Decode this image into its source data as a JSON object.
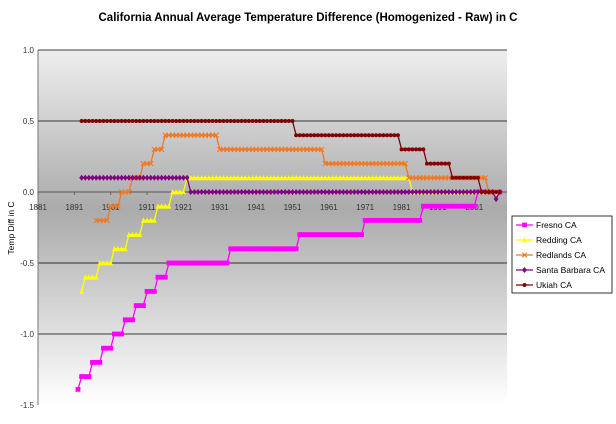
{
  "chart_data": {
    "type": "line",
    "title": "California Annual Average Temperature Difference (Homogenized - Raw) in C",
    "xlabel": "",
    "ylabel": "Temp Diff in C",
    "xlim": [
      1881,
      2010
    ],
    "ylim": [
      -1.5,
      1.0
    ],
    "x_ticks": [
      "1881",
      "1891",
      "1901",
      "1911",
      "1921",
      "1931",
      "1941",
      "1951",
      "1961",
      "1971",
      "1981",
      "1991",
      "2001"
    ],
    "y_ticks": [
      "1.0",
      "0.5",
      "0.0",
      "-0.5",
      "-1.0",
      "-1.5"
    ],
    "grid": "horizontal",
    "legend_position": "right",
    "series": [
      {
        "name": "Fresno CA",
        "color": "#ff00ff",
        "marker": "square",
        "points": [
          [
            1892,
            -1.39
          ],
          [
            1893,
            -1.3
          ],
          [
            1895,
            -1.3
          ],
          [
            1896,
            -1.2
          ],
          [
            1898,
            -1.2
          ],
          [
            1899,
            -1.1
          ],
          [
            1901,
            -1.1
          ],
          [
            1902,
            -1.0
          ],
          [
            1904,
            -1.0
          ],
          [
            1905,
            -0.9
          ],
          [
            1907,
            -0.9
          ],
          [
            1908,
            -0.8
          ],
          [
            1910,
            -0.8
          ],
          [
            1911,
            -0.7
          ],
          [
            1913,
            -0.7
          ],
          [
            1914,
            -0.6
          ],
          [
            1916,
            -0.6
          ],
          [
            1917,
            -0.5
          ],
          [
            1933,
            -0.5
          ],
          [
            1934,
            -0.4
          ],
          [
            1952,
            -0.4
          ],
          [
            1953,
            -0.3
          ],
          [
            1970,
            -0.3
          ],
          [
            1971,
            -0.2
          ],
          [
            1986,
            -0.2
          ],
          [
            1987,
            -0.1
          ],
          [
            2001,
            -0.1
          ],
          [
            2002,
            0.0
          ],
          [
            2008,
            0.0
          ]
        ]
      },
      {
        "name": "Redding CA",
        "color": "#ffff00",
        "marker": "triangle",
        "points": [
          [
            1893,
            -0.7
          ],
          [
            1894,
            -0.6
          ],
          [
            1897,
            -0.6
          ],
          [
            1898,
            -0.5
          ],
          [
            1901,
            -0.5
          ],
          [
            1902,
            -0.4
          ],
          [
            1905,
            -0.4
          ],
          [
            1906,
            -0.3
          ],
          [
            1909,
            -0.3
          ],
          [
            1910,
            -0.2
          ],
          [
            1913,
            -0.2
          ],
          [
            1914,
            -0.1
          ],
          [
            1917,
            -0.1
          ],
          [
            1918,
            0.0
          ],
          [
            1921,
            0.0
          ],
          [
            1922,
            0.1
          ],
          [
            1983,
            0.1
          ],
          [
            1984,
            0.0
          ],
          [
            2007,
            0.0
          ]
        ]
      },
      {
        "name": "Redlands CA",
        "color": "#f07820",
        "marker": "x",
        "points": [
          [
            1897,
            -0.2
          ],
          [
            1900,
            -0.2
          ],
          [
            1901,
            -0.1
          ],
          [
            1903,
            -0.1
          ],
          [
            1904,
            0.0
          ],
          [
            1906,
            0.0
          ],
          [
            1907,
            0.1
          ],
          [
            1909,
            0.1
          ],
          [
            1910,
            0.2
          ],
          [
            1912,
            0.2
          ],
          [
            1913,
            0.3
          ],
          [
            1915,
            0.3
          ],
          [
            1916,
            0.4
          ],
          [
            1930,
            0.4
          ],
          [
            1931,
            0.3
          ],
          [
            1959,
            0.3
          ],
          [
            1960,
            0.2
          ],
          [
            1982,
            0.2
          ],
          [
            1983,
            0.1
          ],
          [
            2004,
            0.1
          ],
          [
            2005,
            0.0
          ],
          [
            2007,
            0.0
          ]
        ]
      },
      {
        "name": "Santa Barbara CA",
        "color": "#800080",
        "marker": "diamond",
        "points": [
          [
            1893,
            0.1
          ],
          [
            1922,
            0.1
          ],
          [
            1923,
            0.0
          ],
          [
            2006,
            0.0
          ],
          [
            2007,
            -0.05
          ],
          [
            2008,
            0.0
          ]
        ]
      },
      {
        "name": "Ukiah CA",
        "color": "#800000",
        "marker": "circle",
        "points": [
          [
            1893,
            0.5
          ],
          [
            1951,
            0.5
          ],
          [
            1952,
            0.4
          ],
          [
            1980,
            0.4
          ],
          [
            1981,
            0.3
          ],
          [
            1987,
            0.3
          ],
          [
            1988,
            0.2
          ],
          [
            1994,
            0.2
          ],
          [
            1995,
            0.1
          ],
          [
            2002,
            0.1
          ],
          [
            2003,
            0.0
          ],
          [
            2008,
            0.0
          ]
        ]
      }
    ]
  }
}
